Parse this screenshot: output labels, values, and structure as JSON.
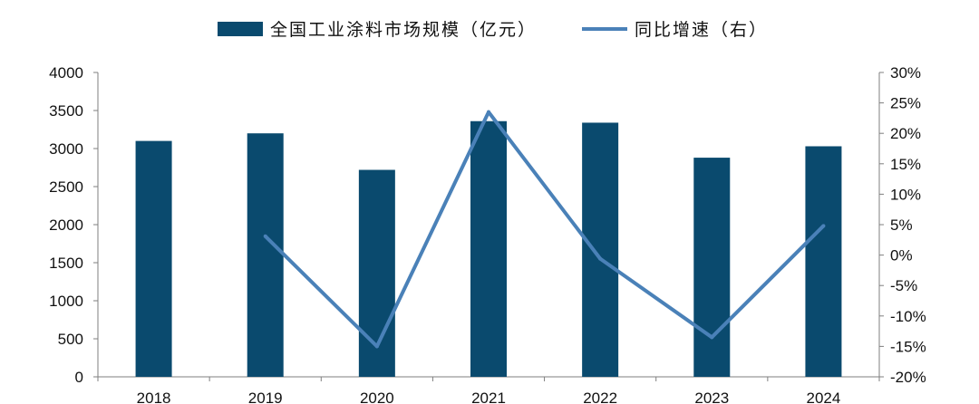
{
  "chart_data": {
    "type": "bar",
    "categories": [
      "2018",
      "2019",
      "2020",
      "2021",
      "2022",
      "2023",
      "2024"
    ],
    "series": [
      {
        "name": "全国工业涂料市场规模（亿元）",
        "type": "bar",
        "axis": "left",
        "values": [
          3100,
          3200,
          2720,
          3360,
          3340,
          2880,
          3030
        ],
        "color": "#0a4a6e"
      },
      {
        "name": "同比增速（右）",
        "type": "line",
        "axis": "right",
        "values": [
          null,
          3.1,
          -15.0,
          23.5,
          -0.6,
          -13.5,
          4.8
        ],
        "color": "#4a81b8"
      }
    ],
    "ylim_left": [
      0,
      4000
    ],
    "yticks_left": [
      "0",
      "500",
      "1000",
      "1500",
      "2000",
      "2500",
      "3000",
      "3500",
      "4000"
    ],
    "ylim_right": [
      -20,
      30
    ],
    "yticks_right": [
      "-20%",
      "-15%",
      "-10%",
      "-5%",
      "0%",
      "5%",
      "10%",
      "15%",
      "20%",
      "25%",
      "30%"
    ],
    "legend_position": "top",
    "grid": false
  }
}
